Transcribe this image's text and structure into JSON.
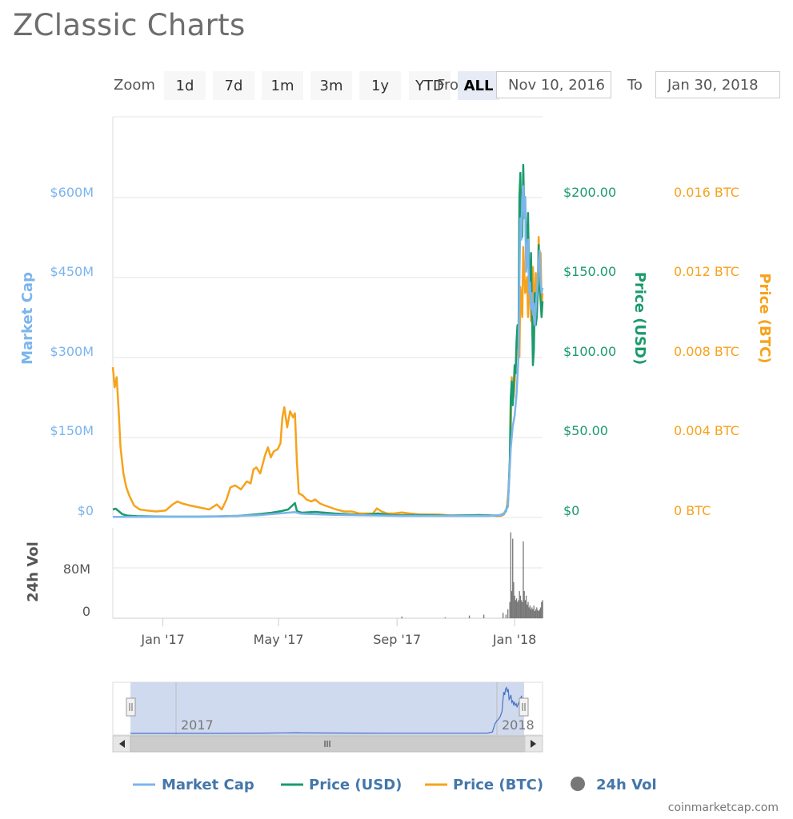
{
  "page_title": "ZClassic Charts",
  "zoom": {
    "label": "Zoom",
    "buttons": [
      "1d",
      "7d",
      "1m",
      "3m",
      "1y",
      "YTD",
      "ALL"
    ],
    "active": "ALL"
  },
  "range": {
    "from_label": "From",
    "from_value": "Nov 10, 2016",
    "to_label": "To",
    "to_value": "Jan 30, 2018"
  },
  "credit": "coinmarketcap.com",
  "colors": {
    "market_cap": "#7cb5ec",
    "price_usd": "#1c9a6c",
    "price_btc": "#f7a21b",
    "volume": "#777777",
    "navigator_fill": "#c8d4ec",
    "navigator_line": "#4572c4"
  },
  "chart_data": {
    "type": "line",
    "axes": {
      "market_cap": {
        "label": "Market Cap",
        "ticks": [
          "$0",
          "$150M",
          "$300M",
          "$450M",
          "$600M"
        ],
        "range": [
          0,
          750
        ]
      },
      "price_usd": {
        "label": "Price (USD)",
        "ticks": [
          "$0",
          "$50.00",
          "$100.00",
          "$150.00",
          "$200.00"
        ],
        "range": [
          0,
          250
        ]
      },
      "price_btc": {
        "label": "Price (BTC)",
        "ticks": [
          "0 BTC",
          "0.004 BTC",
          "0.008 BTC",
          "0.012 BTC",
          "0.016 BTC"
        ],
        "range": [
          0,
          0.02
        ]
      },
      "volume": {
        "label": "24h Vol",
        "ticks": [
          "0",
          "80M"
        ],
        "range": [
          0,
          100
        ]
      }
    },
    "x_ticks": [
      "Jan '17",
      "May '17",
      "Sep '17",
      "Jan '18"
    ],
    "x_tick_days": [
      52,
      172,
      295,
      417
    ],
    "x_range_days": [
      0,
      446
    ],
    "navigator_labels": [
      "2017",
      "2018"
    ],
    "legend": [
      "Market Cap",
      "Price (USD)",
      "Price (BTC)",
      "24h Vol"
    ],
    "series": [
      {
        "name": "Price (BTC)",
        "axis": "price_btc",
        "color": "#f7a21b",
        "points": [
          [
            0,
            0.0075
          ],
          [
            2,
            0.0065
          ],
          [
            4,
            0.007
          ],
          [
            6,
            0.0054
          ],
          [
            8,
            0.0035
          ],
          [
            11,
            0.0022
          ],
          [
            14,
            0.0015
          ],
          [
            17,
            0.0011
          ],
          [
            22,
            0.0006
          ],
          [
            28,
            0.0004
          ],
          [
            35,
            0.00035
          ],
          [
            45,
            0.0003
          ],
          [
            55,
            0.00035
          ],
          [
            62,
            0.00065
          ],
          [
            67,
            0.0008
          ],
          [
            72,
            0.0007
          ],
          [
            80,
            0.0006
          ],
          [
            90,
            0.0005
          ],
          [
            100,
            0.0004
          ],
          [
            108,
            0.00065
          ],
          [
            113,
            0.0004
          ],
          [
            118,
            0.0009
          ],
          [
            122,
            0.0015
          ],
          [
            127,
            0.0016
          ],
          [
            133,
            0.0014
          ],
          [
            139,
            0.0018
          ],
          [
            143,
            0.0017
          ],
          [
            146,
            0.0024
          ],
          [
            149,
            0.0025
          ],
          [
            153,
            0.0022
          ],
          [
            158,
            0.0031
          ],
          [
            161,
            0.0035
          ],
          [
            164,
            0.003
          ],
          [
            167,
            0.0033
          ],
          [
            171,
            0.0034
          ],
          [
            174,
            0.0037
          ],
          [
            176,
            0.005
          ],
          [
            178,
            0.0055
          ],
          [
            181,
            0.0045
          ],
          [
            184,
            0.0053
          ],
          [
            187,
            0.005
          ],
          [
            189,
            0.0052
          ],
          [
            191,
            0.0028
          ],
          [
            193,
            0.0012
          ],
          [
            197,
            0.0011
          ],
          [
            201,
            0.0009
          ],
          [
            206,
            0.0008
          ],
          [
            210,
            0.0009
          ],
          [
            215,
            0.0007
          ],
          [
            220,
            0.0006
          ],
          [
            226,
            0.0005
          ],
          [
            232,
            0.0004
          ],
          [
            240,
            0.0003
          ],
          [
            248,
            0.0003
          ],
          [
            256,
            0.0002
          ],
          [
            264,
            0.0002
          ],
          [
            270,
            0.0002
          ],
          [
            274,
            0.00045
          ],
          [
            279,
            0.0003
          ],
          [
            285,
            0.0002
          ],
          [
            292,
            0.0002
          ],
          [
            300,
            0.00025
          ],
          [
            308,
            0.0002
          ],
          [
            318,
            0.00015
          ],
          [
            328,
            0.00015
          ],
          [
            338,
            0.00015
          ],
          [
            350,
            0.0001
          ],
          [
            360,
            0.0001
          ],
          [
            370,
            0.0001
          ],
          [
            380,
            0.00012
          ],
          [
            390,
            0.0001
          ],
          [
            398,
            8e-05
          ],
          [
            403,
            8e-05
          ],
          [
            406,
            0.00015
          ],
          [
            409,
            0.0005
          ],
          [
            411,
            0.0015
          ],
          [
            413,
            0.004
          ],
          [
            414,
            0.007
          ],
          [
            416,
            0.006
          ],
          [
            418,
            0.0075
          ],
          [
            420,
            0.0088
          ],
          [
            422,
            0.008
          ],
          [
            423,
            0.0115
          ],
          [
            425,
            0.01
          ],
          [
            426,
            0.0135
          ],
          [
            428,
            0.0112
          ],
          [
            430,
            0.012
          ],
          [
            431,
            0.01
          ],
          [
            432,
            0.011
          ],
          [
            433,
            0.0128
          ],
          [
            434,
            0.0098
          ],
          [
            435,
            0.011
          ],
          [
            436,
            0.0125
          ],
          [
            437,
            0.0105
          ],
          [
            438,
            0.011
          ],
          [
            439,
            0.0122
          ],
          [
            440,
            0.0108
          ],
          [
            441,
            0.0112
          ],
          [
            442,
            0.014
          ],
          [
            443,
            0.0118
          ],
          [
            444,
            0.0132
          ],
          [
            445,
            0.0105
          ],
          [
            446,
            0.0112
          ]
        ]
      },
      {
        "name": "Price (USD)",
        "axis": "price_usd",
        "color": "#1c9a6c",
        "points": [
          [
            0,
            5
          ],
          [
            3,
            5.5
          ],
          [
            6,
            4
          ],
          [
            10,
            2
          ],
          [
            15,
            1.2
          ],
          [
            25,
            0.8
          ],
          [
            40,
            0.6
          ],
          [
            60,
            0.5
          ],
          [
            90,
            0.5
          ],
          [
            110,
            0.7
          ],
          [
            130,
            1
          ],
          [
            150,
            2
          ],
          [
            165,
            3
          ],
          [
            175,
            4
          ],
          [
            182,
            5
          ],
          [
            189,
            9
          ],
          [
            191,
            4
          ],
          [
            196,
            3
          ],
          [
            210,
            3.5
          ],
          [
            230,
            2.5
          ],
          [
            260,
            1.5
          ],
          [
            275,
            2.5
          ],
          [
            290,
            1.5
          ],
          [
            320,
            1.5
          ],
          [
            350,
            1.2
          ],
          [
            380,
            1.5
          ],
          [
            400,
            1.2
          ],
          [
            405,
            2
          ],
          [
            408,
            4
          ],
          [
            410,
            8
          ],
          [
            412,
            35
          ],
          [
            413,
            75
          ],
          [
            414,
            85
          ],
          [
            415,
            70
          ],
          [
            416,
            80
          ],
          [
            417,
            95
          ],
          [
            418,
            90
          ],
          [
            419,
            110
          ],
          [
            420,
            120
          ],
          [
            421,
            105
          ],
          [
            422,
            200
          ],
          [
            423,
            215
          ],
          [
            424,
            180
          ],
          [
            425,
            175
          ],
          [
            426,
            220
          ],
          [
            427,
            190
          ],
          [
            428,
            200
          ],
          [
            429,
            160
          ],
          [
            430,
            175
          ],
          [
            431,
            190
          ],
          [
            432,
            150
          ],
          [
            433,
            140
          ],
          [
            434,
            165
          ],
          [
            435,
            130
          ],
          [
            436,
            95
          ],
          [
            437,
            105
          ],
          [
            438,
            140
          ],
          [
            439,
            120
          ],
          [
            440,
            125
          ],
          [
            441,
            140
          ],
          [
            442,
            170
          ],
          [
            443,
            145
          ],
          [
            444,
            135
          ],
          [
            445,
            125
          ],
          [
            446,
            135
          ]
        ]
      },
      {
        "name": "Market Cap",
        "axis": "market_cap",
        "color": "#7cb5ec",
        "points": [
          [
            0,
            1
          ],
          [
            40,
            1
          ],
          [
            100,
            1.5
          ],
          [
            150,
            4
          ],
          [
            175,
            8
          ],
          [
            189,
            10
          ],
          [
            195,
            7
          ],
          [
            230,
            5
          ],
          [
            260,
            4
          ],
          [
            300,
            3
          ],
          [
            350,
            3
          ],
          [
            390,
            3
          ],
          [
            405,
            5
          ],
          [
            410,
            20
          ],
          [
            413,
            130
          ],
          [
            415,
            170
          ],
          [
            417,
            190
          ],
          [
            419,
            230
          ],
          [
            421,
            300
          ],
          [
            422,
            450
          ],
          [
            423,
            560
          ],
          [
            424,
            520
          ],
          [
            425,
            600
          ],
          [
            426,
            620
          ],
          [
            427,
            560
          ],
          [
            428,
            600
          ],
          [
            429,
            460
          ],
          [
            430,
            480
          ],
          [
            431,
            520
          ],
          [
            432,
            420
          ],
          [
            433,
            440
          ],
          [
            434,
            390
          ],
          [
            435,
            420
          ],
          [
            436,
            380
          ],
          [
            437,
            400
          ],
          [
            438,
            360
          ],
          [
            439,
            390
          ],
          [
            440,
            420
          ],
          [
            441,
            440
          ],
          [
            442,
            480
          ],
          [
            443,
            500
          ],
          [
            444,
            440
          ],
          [
            445,
            420
          ],
          [
            446,
            430
          ]
        ]
      },
      {
        "name": "24h Vol",
        "axis": "volume",
        "type": "bar",
        "color": "#777777",
        "points": [
          [
            300,
            2
          ],
          [
            345,
            1
          ],
          [
            370,
            3
          ],
          [
            385,
            4
          ],
          [
            405,
            6
          ],
          [
            408,
            4
          ],
          [
            410,
            10
          ],
          [
            412,
            18
          ],
          [
            413,
            95
          ],
          [
            414,
            30
          ],
          [
            415,
            88
          ],
          [
            416,
            40
          ],
          [
            417,
            25
          ],
          [
            418,
            20
          ],
          [
            419,
            22
          ],
          [
            420,
            18
          ],
          [
            421,
            20
          ],
          [
            422,
            30
          ],
          [
            423,
            25
          ],
          [
            424,
            20
          ],
          [
            425,
            18
          ],
          [
            426,
            85
          ],
          [
            427,
            30
          ],
          [
            428,
            20
          ],
          [
            429,
            25
          ],
          [
            430,
            15
          ],
          [
            431,
            18
          ],
          [
            432,
            12
          ],
          [
            433,
            14
          ],
          [
            434,
            10
          ],
          [
            435,
            12
          ],
          [
            436,
            10
          ],
          [
            437,
            14
          ],
          [
            438,
            8
          ],
          [
            439,
            10
          ],
          [
            440,
            12
          ],
          [
            441,
            9
          ],
          [
            442,
            8
          ],
          [
            443,
            10
          ],
          [
            444,
            12
          ],
          [
            445,
            18
          ],
          [
            446,
            20
          ]
        ]
      }
    ]
  }
}
